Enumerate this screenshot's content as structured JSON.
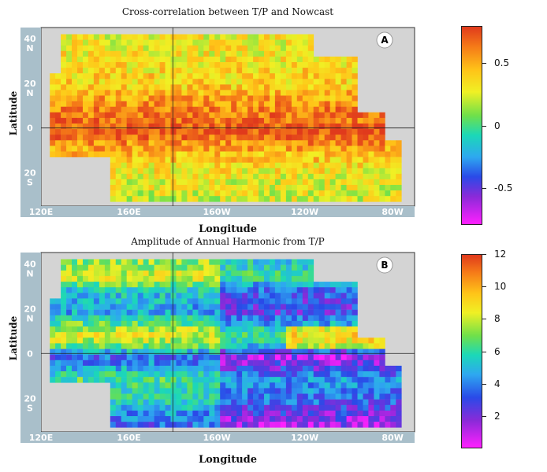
{
  "chart_data": [
    {
      "type": "heatmap",
      "panel_label": "A",
      "title": "Cross-correlation between T/P and Nowcast",
      "xlabel": "Longitude",
      "ylabel": "Latitude",
      "x_tick_labels": [
        "120E",
        "160E",
        "160W",
        "120W",
        "80W"
      ],
      "y_tick_labels": [
        {
          "value": 40,
          "label": "40",
          "hemisphere": "N"
        },
        {
          "value": 20,
          "label": "20",
          "hemisphere": "N"
        },
        {
          "value": 0,
          "label": "0",
          "hemisphere": ""
        },
        {
          "value": -20,
          "label": "20",
          "hemisphere": "S"
        }
      ],
      "x_range": [
        120,
        290
      ],
      "y_range": [
        -35,
        45
      ],
      "colorbar": {
        "range": [
          -0.8,
          0.8
        ],
        "ticks": [
          {
            "value": 0.5,
            "label": "0.5"
          },
          {
            "value": 0,
            "label": "0"
          },
          {
            "value": -0.5,
            "label": "-0.5"
          }
        ],
        "colors": [
          "#ff20ff",
          "#8a2ad8",
          "#2a4ae8",
          "#2ea8f0",
          "#1bd8b8",
          "#6fe04a",
          "#f0f024",
          "#ffc418",
          "#f57a18",
          "#e03a1c"
        ]
      },
      "pattern": "equatorial-maximum",
      "values_by_latitude": {
        "lat": [
          40,
          30,
          20,
          10,
          5,
          0,
          -5,
          -10,
          -20,
          -30
        ],
        "value": [
          0.3,
          0.35,
          0.4,
          0.6,
          0.65,
          0.75,
          0.6,
          0.45,
          0.3,
          0.25
        ]
      }
    },
    {
      "type": "heatmap",
      "panel_label": "B",
      "title": "Amplitude of Annual Harmonic from T/P",
      "xlabel": "Longitude",
      "ylabel": "Latitude",
      "x_tick_labels": [
        "120E",
        "160E",
        "160W",
        "120W",
        "80W"
      ],
      "y_tick_labels": [
        {
          "value": 40,
          "label": "40",
          "hemisphere": "N"
        },
        {
          "value": 20,
          "label": "20",
          "hemisphere": "N"
        },
        {
          "value": 0,
          "label": "0",
          "hemisphere": ""
        },
        {
          "value": -20,
          "label": "20",
          "hemisphere": "S"
        }
      ],
      "x_range": [
        120,
        290
      ],
      "y_range": [
        -35,
        45
      ],
      "colorbar": {
        "range": [
          0,
          12
        ],
        "ticks": [
          {
            "value": 12,
            "label": "12"
          },
          {
            "value": 10,
            "label": "10"
          },
          {
            "value": 8,
            "label": "8"
          },
          {
            "value": 6,
            "label": "6"
          },
          {
            "value": 4,
            "label": "4"
          },
          {
            "value": 2,
            "label": "2"
          }
        ],
        "colors": [
          "#ff20ff",
          "#8a2ad8",
          "#2a4ae8",
          "#2ea8f0",
          "#1bd8b8",
          "#6fe04a",
          "#f0f024",
          "#ffc418",
          "#f57a18",
          "#e03a1c"
        ]
      },
      "pattern": "off-equatorial-bands",
      "values_by_latitude": {
        "lat": [
          40,
          35,
          30,
          20,
          10,
          5,
          0,
          -5,
          -10,
          -20,
          -30
        ],
        "value": [
          7,
          8,
          5,
          4,
          8,
          7,
          3,
          4,
          6,
          5,
          3
        ]
      }
    }
  ]
}
